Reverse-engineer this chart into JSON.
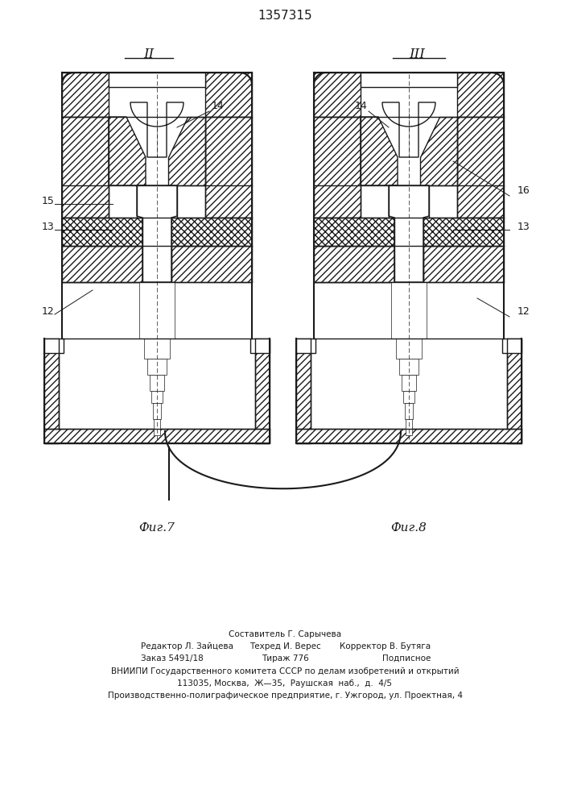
{
  "title": "1357315",
  "fig7_label": "Фиг.7",
  "fig8_label": "Фиг.8",
  "roman2": "II",
  "roman3": "III",
  "line_color": "#1a1a1a",
  "bg_color": "#ffffff",
  "footer_line0": "Составитель Г. Сарычева",
  "footer_line1_left": "Редактор Л. Зайцева",
  "footer_line1_mid": "Техред И. Верес",
  "footer_line1_right": "Корректор В. Бутяга",
  "footer_line2_left": "Заказ 5491/18",
  "footer_line2_mid": "Тираж 776",
  "footer_line2_right": "Подписное",
  "footer_line3": "ВНИИПИ Государственного комитета СССР по делам изобретений и открытий",
  "footer_line4": "113035, Москва,  Ж—35,  Раушская  наб.,  д.  4/5",
  "footer_line5": "Производственно-полиграфическое предприятие, г. Ужгород, ул. Проектная, 4"
}
